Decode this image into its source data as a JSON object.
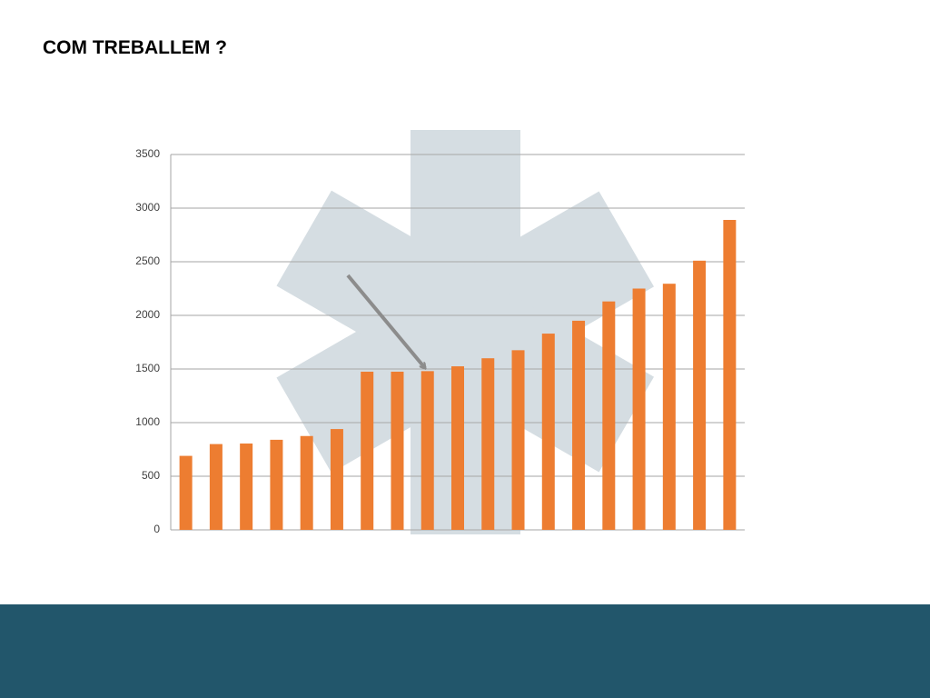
{
  "title": "COM TREBALLEM ?",
  "chart_data": {
    "type": "bar",
    "categories": [
      null,
      null,
      null,
      null,
      null,
      null,
      null,
      null,
      null,
      null,
      null,
      null,
      null,
      null,
      null,
      null,
      null,
      null,
      null
    ],
    "values": [
      690,
      800,
      805,
      840,
      875,
      940,
      1475,
      1475,
      1480,
      1525,
      1600,
      1675,
      1830,
      1950,
      2130,
      2250,
      2295,
      2510,
      2890
    ],
    "color": "#ed7d31",
    "ylim": [
      0,
      3500
    ],
    "yticks": [
      0,
      500,
      1000,
      1500,
      2000,
      2500,
      3000,
      3500
    ],
    "grid": true
  }
}
